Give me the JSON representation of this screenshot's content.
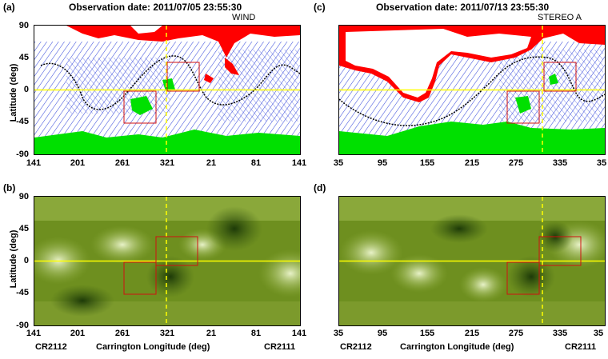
{
  "figure": {
    "panels": [
      {
        "id": "a",
        "label": "(a)",
        "title": "Observation date: 2011/07/05 23:55:30",
        "observer": "WIND",
        "xticks": [
          "141",
          "201",
          "261",
          "321",
          "21",
          "81",
          "141"
        ]
      },
      {
        "id": "b",
        "label": "(b)",
        "xticks": [
          "141",
          "201",
          "261",
          "321",
          "21",
          "81",
          "141"
        ],
        "cr_left": "CR2112",
        "cr_right": "CR2111",
        "xlabel": "Carrington Longitude (deg)"
      },
      {
        "id": "c",
        "label": "(c)",
        "title": "Observation date: 2011/07/13 23:55:30",
        "observer": "STEREO A",
        "xticks": [
          "35",
          "95",
          "155",
          "215",
          "275",
          "335",
          "35"
        ]
      },
      {
        "id": "d",
        "label": "(d)",
        "xticks": [
          "35",
          "95",
          "155",
          "215",
          "275",
          "335",
          "35"
        ],
        "cr_left": "CR2112",
        "cr_right": "CR2111",
        "xlabel": "Carrington Longitude (deg)"
      }
    ],
    "ylabel": "Latitude (deg)",
    "yticks": [
      "90",
      "45",
      "0",
      "-45",
      "-90"
    ],
    "colors": {
      "field_lines": "#1a2fd6",
      "open_positive": "#ff0000",
      "open_negative": "#00e000",
      "neutral_line": "#000000",
      "equator": "#ffff00",
      "euv_green": "#6e8f1f",
      "box": "#d01010"
    }
  }
}
